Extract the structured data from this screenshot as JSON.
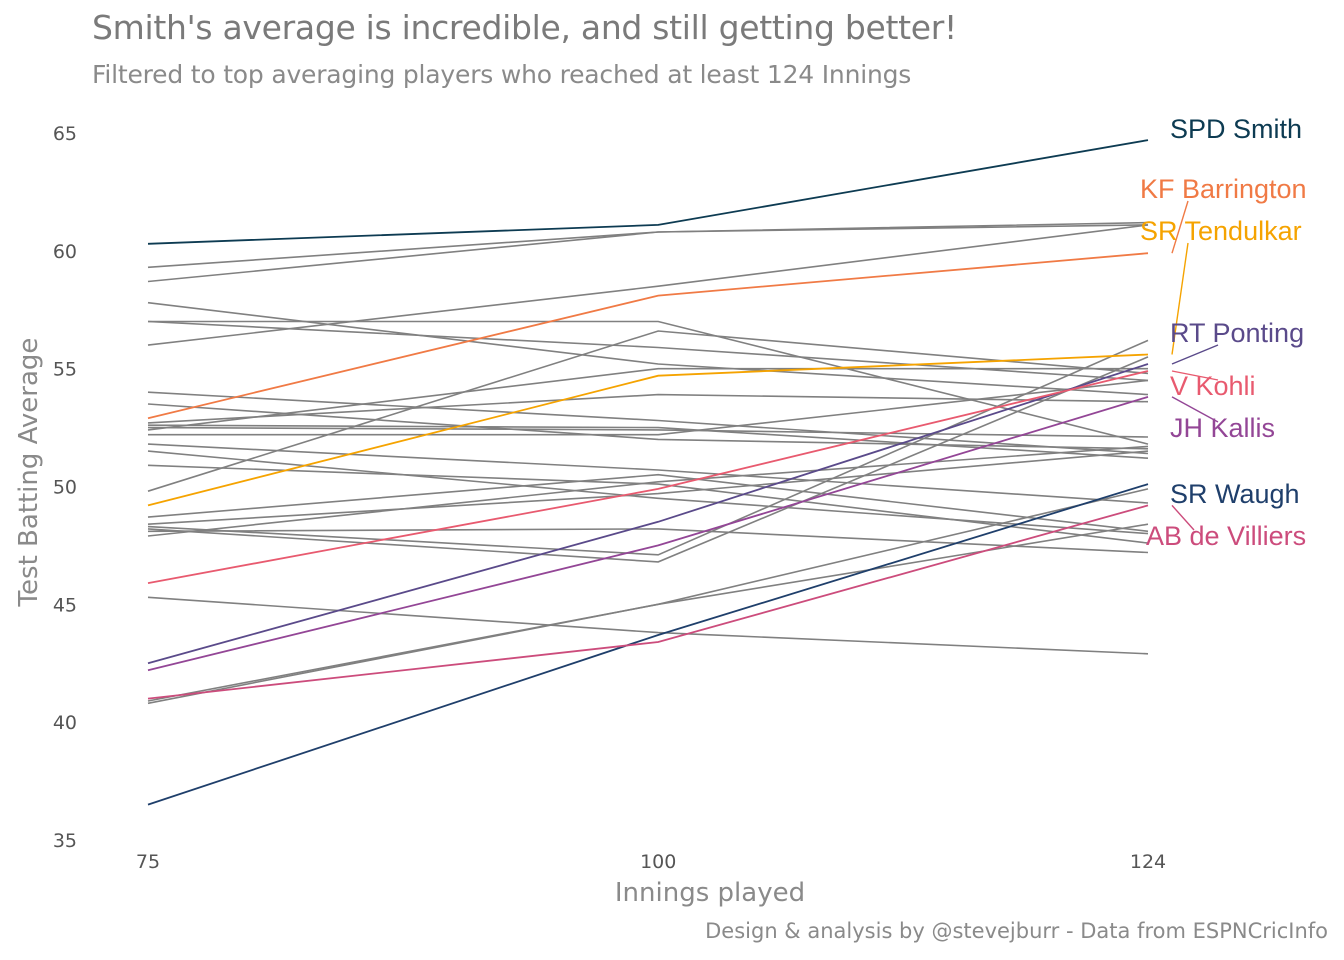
{
  "title": "Smith's average is incredible, and still getting better!",
  "subtitle": "Filtered to top averaging players who reached at least 124 Innings",
  "caption": "Design & analysis by @stevejburr - Data from ESPNCricInfo",
  "chart_data": {
    "type": "line",
    "x": [
      75,
      100,
      124
    ],
    "xlabel": "Innings played",
    "ylabel": "Test Batting Average",
    "xticks": [
      "75",
      "100",
      "124"
    ],
    "yticks": [
      "35",
      "40",
      "45",
      "50",
      "55",
      "60",
      "65"
    ],
    "xlim": [
      75,
      124
    ],
    "ylim": [
      35,
      65
    ],
    "grid": false,
    "legend": "none",
    "background_color": "#808080",
    "highlighted": [
      {
        "name": "SPD Smith",
        "color": "#0d3b52",
        "values": [
          60.3,
          61.1,
          64.7
        ]
      },
      {
        "name": "KF Barrington",
        "color": "#f07a45",
        "values": [
          52.9,
          58.1,
          59.9
        ]
      },
      {
        "name": "SR Tendulkar",
        "color": "#f5a300",
        "values": [
          49.2,
          54.7,
          55.6
        ]
      },
      {
        "name": "RT Ponting",
        "color": "#5a4a8a",
        "values": [
          42.5,
          48.5,
          55.2
        ]
      },
      {
        "name": "V Kohli",
        "color": "#e85a6f",
        "values": [
          45.9,
          49.9,
          54.9
        ]
      },
      {
        "name": "JH Kallis",
        "color": "#934696",
        "values": [
          42.2,
          47.5,
          53.8
        ]
      },
      {
        "name": "SR Waugh",
        "color": "#1f3f6b",
        "values": [
          36.5,
          43.7,
          50.1
        ]
      },
      {
        "name": "AB de Villiers",
        "color": "#cc4c7c",
        "values": [
          41.0,
          43.4,
          49.2
        ]
      }
    ],
    "background": [
      [
        59.3,
        60.8,
        61.2
      ],
      [
        58.7,
        60.8,
        61.1
      ],
      [
        57.8,
        55.2,
        53.9
      ],
      [
        57.0,
        57.0,
        51.8
      ],
      [
        57.0,
        55.9,
        54.5
      ],
      [
        56.0,
        58.5,
        61.1
      ],
      [
        54.0,
        52.8,
        51.4
      ],
      [
        53.5,
        52.0,
        51.6
      ],
      [
        52.7,
        53.9,
        53.6
      ],
      [
        52.6,
        52.5,
        51.2
      ],
      [
        52.5,
        52.4,
        52.1
      ],
      [
        52.4,
        55.0,
        55.0
      ],
      [
        52.2,
        52.2,
        54.5
      ],
      [
        51.8,
        50.7,
        49.3
      ],
      [
        51.5,
        49.5,
        48.0
      ],
      [
        50.9,
        50.1,
        47.6
      ],
      [
        49.8,
        56.6,
        54.8
      ],
      [
        48.7,
        50.5,
        48.1
      ],
      [
        48.4,
        49.7,
        51.5
      ],
      [
        48.3,
        47.1,
        56.2
      ],
      [
        48.2,
        46.8,
        55.5
      ],
      [
        48.1,
        48.2,
        47.2
      ],
      [
        47.9,
        50.2,
        51.7
      ],
      [
        45.3,
        43.8,
        42.9
      ],
      [
        40.8,
        45.0,
        48.4
      ],
      [
        40.9,
        45.0,
        49.9
      ]
    ]
  }
}
